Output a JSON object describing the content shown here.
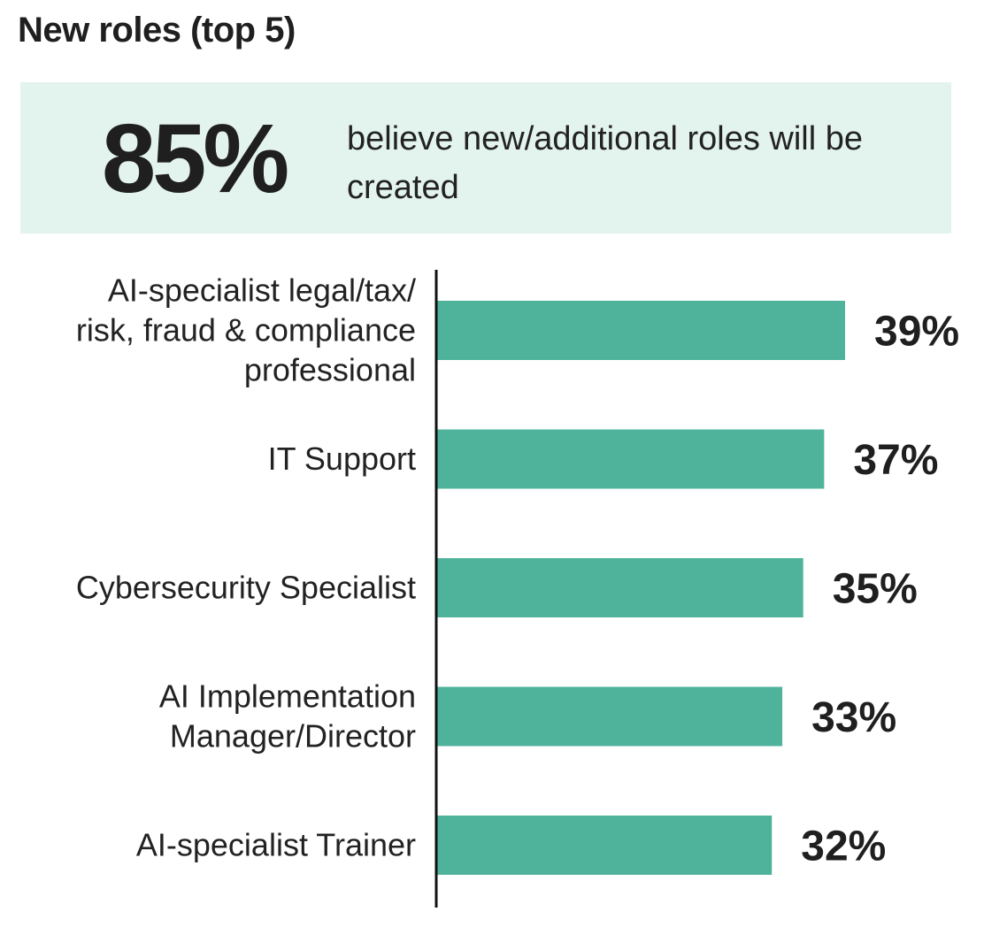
{
  "title": "New roles (top 5)",
  "highlight": {
    "value": "85%",
    "text": "believe new/additional roles will be created"
  },
  "colors": {
    "bar": "#4fb39b",
    "highlight_bg": "#e3f3ee",
    "axis": "#111111"
  },
  "chart_data": {
    "type": "bar",
    "orientation": "horizontal",
    "categories": [
      [
        "AI-specialist legal/tax/",
        "risk, fraud & compliance",
        "professional"
      ],
      [
        "IT Support"
      ],
      [
        "Cybersecurity Specialist"
      ],
      [
        "AI Implementation",
        "Manager/Director"
      ],
      [
        "AI-specialist Trainer"
      ]
    ],
    "values": [
      39,
      37,
      35,
      33,
      32
    ],
    "value_labels": [
      "39%",
      "37%",
      "35%",
      "33%",
      "32%"
    ],
    "xlim": [
      0,
      39
    ],
    "grid": false,
    "legend": "none"
  }
}
